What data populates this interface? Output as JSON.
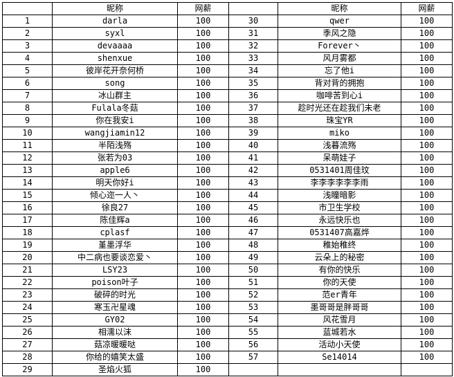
{
  "colors": {
    "border": "#000000",
    "text": "#000000",
    "background": "#ffffff"
  },
  "table": {
    "headers": [
      "",
      "昵称",
      "网薪",
      "",
      "昵称",
      "网薪"
    ],
    "rows": [
      [
        "1",
        "darla",
        "100",
        "30",
        "qwer",
        "100"
      ],
      [
        "2",
        "syxl",
        "100",
        "31",
        "季风之隐",
        "100"
      ],
      [
        "3",
        "devaaaa",
        "100",
        "32",
        "Forever丶",
        "100"
      ],
      [
        "4",
        "shenxue",
        "100",
        "33",
        "风月雾都",
        "100"
      ],
      [
        "5",
        "彼岸花开奈何桥",
        "100",
        "34",
        "忘了他i",
        "100"
      ],
      [
        "6",
        "song",
        "100",
        "35",
        "背对背的拥抱",
        "100"
      ],
      [
        "7",
        "冰山群主",
        "100",
        "36",
        "咖啡苦到心i",
        "100"
      ],
      [
        "8",
        "Fulala冬菇",
        "100",
        "37",
        "趁时光还在趁我们未老",
        "100"
      ],
      [
        "9",
        "你在我安i",
        "100",
        "38",
        "珠宝YR",
        "100"
      ],
      [
        "10",
        "wangjiamin12",
        "100",
        "39",
        "miko",
        "100"
      ],
      [
        "11",
        "半陌浅殇",
        "100",
        "40",
        "浅暮流殇",
        "100"
      ],
      [
        "12",
        "张若为03",
        "100",
        "41",
        "呆萌娃子",
        "100"
      ],
      [
        "13",
        "apple6",
        "100",
        "42",
        "0531401周佳玟",
        "100"
      ],
      [
        "14",
        "明天你好i",
        "100",
        "43",
        "李李李李李李雨",
        "100"
      ],
      [
        "15",
        "倾心迩一人丶",
        "100",
        "44",
        "浅瞳暗影",
        "100"
      ],
      [
        "16",
        "徐良27",
        "100",
        "45",
        "市卫生学校",
        "100"
      ],
      [
        "17",
        "陈佳辉a",
        "100",
        "46",
        "永远快乐也",
        "100"
      ],
      [
        "18",
        "cplasf",
        "100",
        "47",
        "0531407高嘉烨",
        "100"
      ],
      [
        "19",
        "堇墨浮华",
        "100",
        "48",
        "稚始稚终",
        "100"
      ],
      [
        "20",
        "中二病也要谈恋爱丶",
        "100",
        "49",
        "云朵上的秘密",
        "100"
      ],
      [
        "21",
        "LSY23",
        "100",
        "50",
        "有你的快乐",
        "100"
      ],
      [
        "22",
        "poison叶子",
        "100",
        "51",
        "你的天使",
        "100"
      ],
      [
        "23",
        "破碎的时光",
        "100",
        "52",
        "范er青年",
        "100"
      ],
      [
        "24",
        "寒玉卍星魂",
        "100",
        "53",
        "墨哥哥是胖哥哥",
        "100"
      ],
      [
        "25",
        "GY02",
        "100",
        "54",
        "风花雪月",
        "100"
      ],
      [
        "26",
        "相濡以沫",
        "100",
        "55",
        "蓝城若水",
        "100"
      ],
      [
        "27",
        "菇凉暖暖哒",
        "100",
        "56",
        "活动小天使",
        "100"
      ],
      [
        "28",
        "你给的嬉笑太盛",
        "100",
        "57",
        "Se14014",
        "100"
      ],
      [
        "29",
        "圣焰火狐",
        "100",
        "",
        "",
        ""
      ]
    ]
  }
}
